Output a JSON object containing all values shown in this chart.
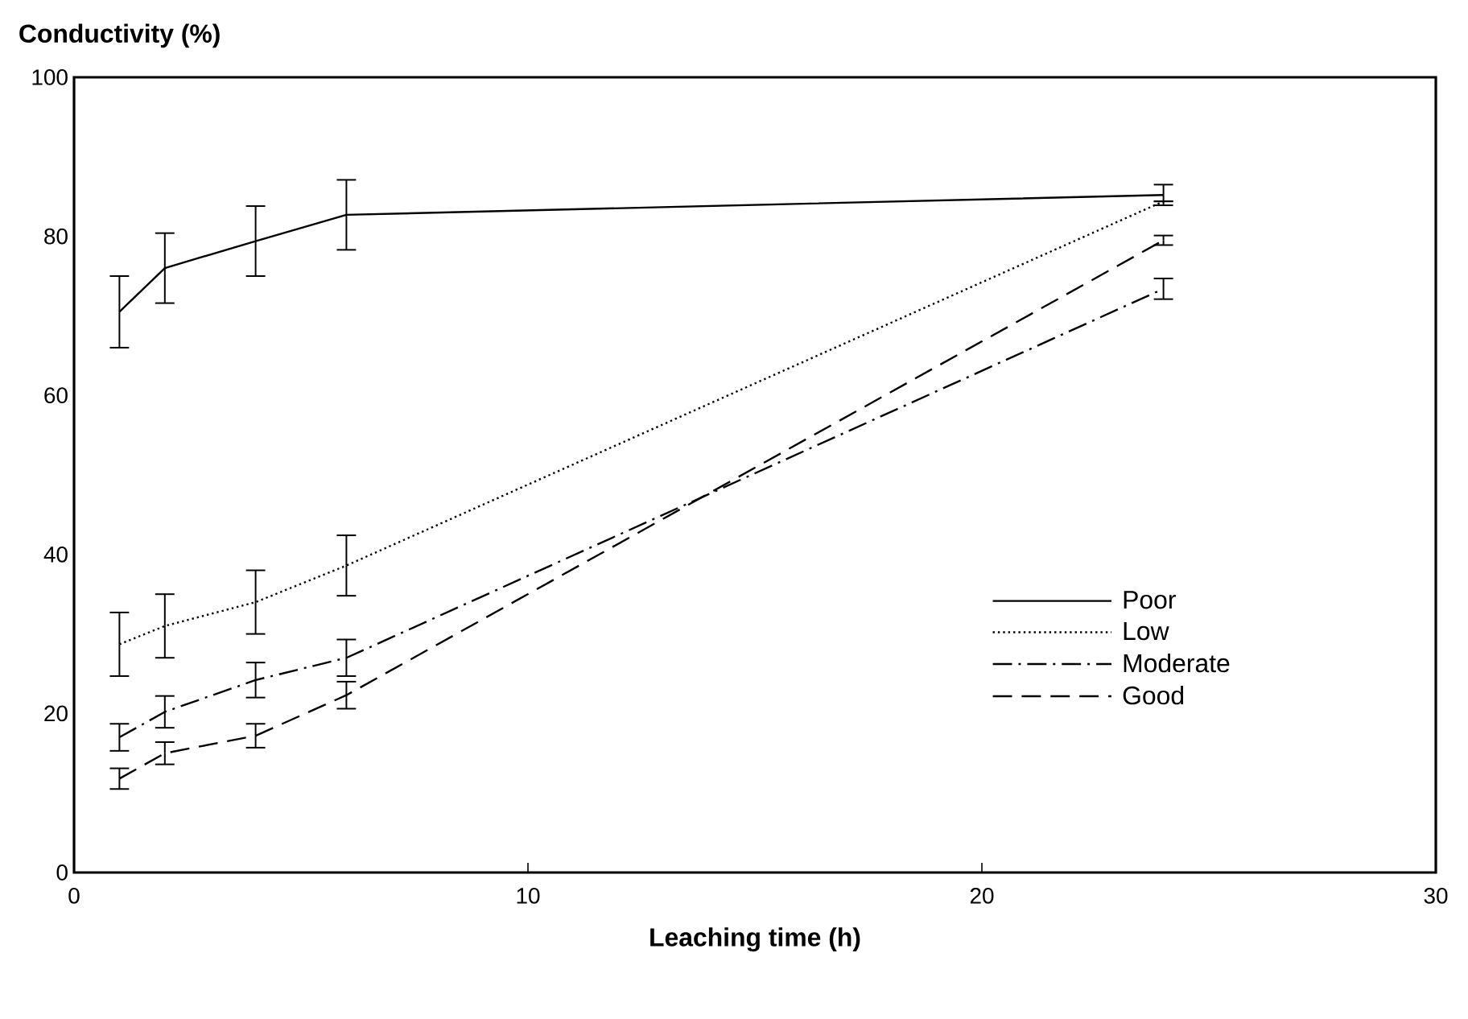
{
  "chart_data": {
    "type": "line",
    "ylabel": "Conductivity (%)",
    "xlabel": "Leaching time (h)",
    "x": [
      1,
      2,
      4,
      6,
      24
    ],
    "series": [
      {
        "name": "Poor",
        "color": "#000000",
        "line_style": "solid",
        "values": [
          70.5,
          76,
          79.4,
          82.7,
          85.2
        ],
        "errors": [
          4.5,
          4.4,
          4.4,
          4.4,
          1.3
        ]
      },
      {
        "name": "Low",
        "color": "#000000",
        "line_style": "dotted",
        "values": [
          28.7,
          31,
          34,
          38.6,
          84.4
        ],
        "errors": [
          4,
          4,
          4,
          3.8,
          null
        ]
      },
      {
        "name": "Moderate",
        "color": "#000000",
        "line_style": "dashdotted",
        "values": [
          17,
          20.2,
          24.2,
          27,
          73.4
        ],
        "errors": [
          1.7,
          2,
          2.2,
          2.3,
          1.3
        ]
      },
      {
        "name": "Good",
        "color": "#000000",
        "line_style": "dashed",
        "values": [
          11.8,
          15,
          17.2,
          22.3,
          79.5
        ],
        "errors": [
          1.3,
          1.4,
          1.5,
          1.7,
          0.6
        ]
      }
    ],
    "xlim": [
      0,
      30
    ],
    "xticks": [
      0,
      10,
      20,
      30
    ],
    "ylim": [
      0,
      100
    ],
    "yticks": [
      0,
      20,
      40,
      60,
      80,
      100
    ],
    "grid": false,
    "legend": "bottom right",
    "marker": "none"
  }
}
